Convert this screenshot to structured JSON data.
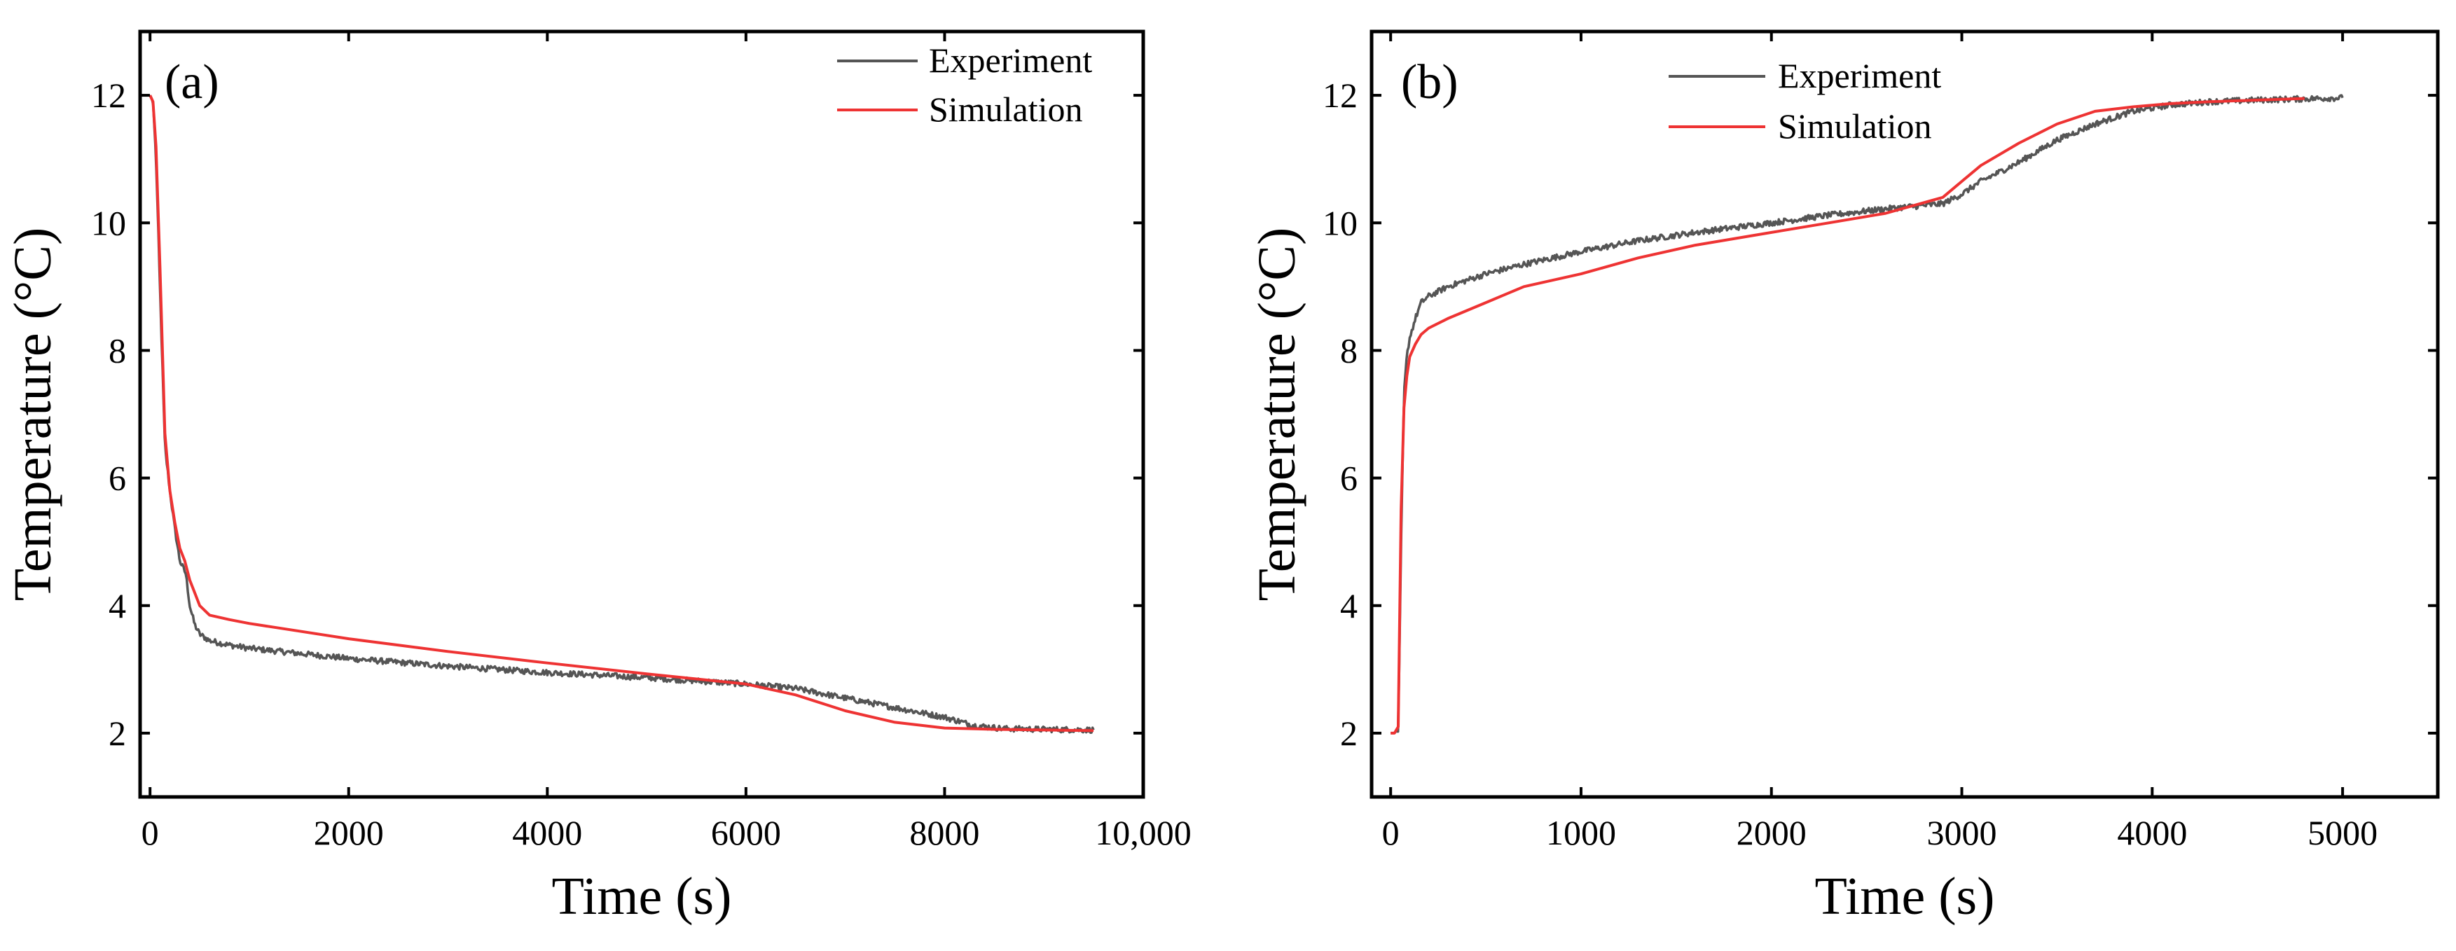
{
  "chart_data": [
    {
      "type": "line",
      "panel_label": "(a)",
      "xlabel": "Time (s)",
      "ylabel": "Temperature (°C)",
      "xlim": [
        -100,
        10000
      ],
      "ylim": [
        1,
        13
      ],
      "xticks": [
        0,
        2000,
        4000,
        6000,
        8000,
        10000
      ],
      "xtick_labels": [
        "0",
        "2000",
        "4000",
        "6000",
        "8000",
        "10,000"
      ],
      "yticks": [
        2,
        4,
        6,
        8,
        10,
        12
      ],
      "ytick_labels": [
        "2",
        "4",
        "6",
        "8",
        "10",
        "12"
      ],
      "grid": false,
      "legend_position": "top-right",
      "series": [
        {
          "name": "Experiment",
          "color": "#555555",
          "noisy": true,
          "x": [
            0,
            30,
            60,
            100,
            150,
            200,
            250,
            300,
            330,
            360,
            400,
            450,
            500,
            600,
            800,
            1000,
            1500,
            2000,
            3000,
            4000,
            5000,
            6000,
            6500,
            7000,
            7500,
            8000,
            8300,
            8600,
            9000,
            9500
          ],
          "y": [
            12.0,
            11.9,
            11.0,
            9.0,
            6.5,
            5.8,
            5.2,
            4.7,
            4.6,
            4.5,
            4.0,
            3.7,
            3.55,
            3.45,
            3.38,
            3.33,
            3.25,
            3.17,
            3.05,
            2.95,
            2.87,
            2.77,
            2.7,
            2.55,
            2.4,
            2.25,
            2.12,
            2.07,
            2.06,
            2.05
          ]
        },
        {
          "name": "Simulation",
          "color": "#ee3333",
          "noisy": false,
          "x": [
            0,
            30,
            60,
            100,
            150,
            200,
            250,
            300,
            350,
            400,
            450,
            500,
            600,
            800,
            1000,
            1500,
            2000,
            3000,
            4000,
            5000,
            5500,
            6000,
            6500,
            7000,
            7500,
            8000,
            8500,
            9000,
            9500
          ],
          "y": [
            12.0,
            11.9,
            11.2,
            9.3,
            6.7,
            5.8,
            5.3,
            4.9,
            4.7,
            4.4,
            4.2,
            4.0,
            3.85,
            3.78,
            3.72,
            3.6,
            3.48,
            3.28,
            3.1,
            2.93,
            2.85,
            2.77,
            2.6,
            2.35,
            2.17,
            2.08,
            2.06,
            2.05,
            2.04
          ]
        }
      ]
    },
    {
      "type": "line",
      "panel_label": "(b)",
      "xlabel": "Time (s)",
      "ylabel": "Temperature (°C)",
      "xlim": [
        -100,
        5500
      ],
      "ylim": [
        1,
        13
      ],
      "xticks": [
        0,
        1000,
        2000,
        3000,
        4000,
        5000
      ],
      "xtick_labels": [
        "0",
        "1000",
        "2000",
        "3000",
        "4000",
        "5000"
      ],
      "yticks": [
        2,
        4,
        6,
        8,
        10,
        12
      ],
      "ytick_labels": [
        "2",
        "4",
        "6",
        "8",
        "10",
        "12"
      ],
      "grid": false,
      "legend_position": "top-center",
      "series": [
        {
          "name": "Experiment",
          "color": "#555555",
          "noisy": true,
          "x": [
            0,
            20,
            40,
            55,
            70,
            85,
            100,
            130,
            160,
            200,
            300,
            500,
            700,
            1000,
            1300,
            1600,
            2000,
            2300,
            2600,
            2900,
            3000,
            3100,
            3300,
            3500,
            3700,
            3900,
            4100,
            4300,
            4600,
            5000
          ],
          "y": [
            2.0,
            2.0,
            2.05,
            5.0,
            7.3,
            7.9,
            8.2,
            8.5,
            8.75,
            8.85,
            9.0,
            9.2,
            9.35,
            9.55,
            9.72,
            9.85,
            10.0,
            10.12,
            10.22,
            10.3,
            10.45,
            10.65,
            10.95,
            11.3,
            11.55,
            11.75,
            11.85,
            11.9,
            11.93,
            11.96
          ]
        },
        {
          "name": "Simulation",
          "color": "#ee3333",
          "noisy": false,
          "x": [
            0,
            20,
            40,
            55,
            70,
            85,
            100,
            130,
            160,
            200,
            300,
            500,
            700,
            1000,
            1300,
            1600,
            2000,
            2300,
            2600,
            2900,
            3000,
            3100,
            3300,
            3500,
            3700,
            3900,
            4100,
            4300,
            4600,
            4800
          ],
          "y": [
            2.0,
            2.0,
            2.1,
            5.5,
            7.1,
            7.6,
            7.9,
            8.1,
            8.25,
            8.35,
            8.5,
            8.75,
            9.0,
            9.2,
            9.45,
            9.65,
            9.85,
            10.0,
            10.15,
            10.4,
            10.65,
            10.9,
            11.25,
            11.55,
            11.75,
            11.82,
            11.87,
            11.9,
            11.93,
            11.95
          ]
        }
      ]
    }
  ]
}
